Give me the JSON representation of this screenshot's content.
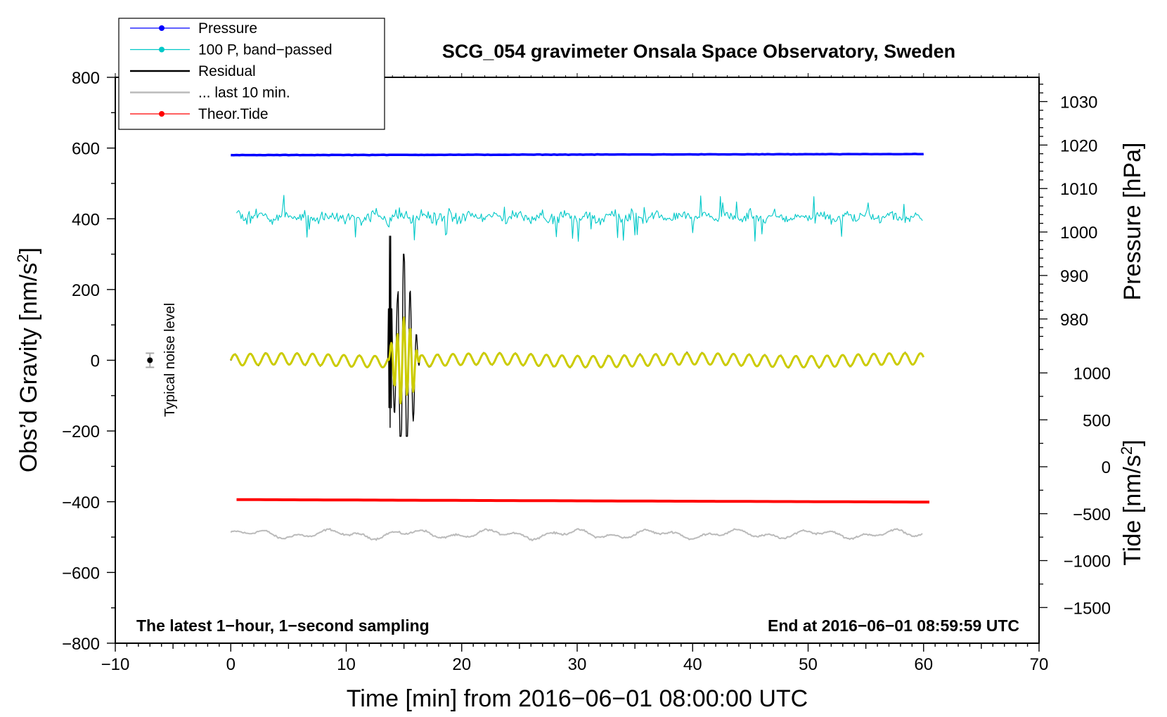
{
  "chart_data": {
    "type": "line",
    "title": "SCG_054 gravimeter Onsala Space Observatory, Sweden",
    "xlabel": "Time [min] from 2016−06−01 08:00:00 UTC",
    "ylabel_left": {
      "main": "Obs’d Gravity [nm/s",
      "sup": "2",
      "close": "]"
    },
    "ylabel_right_top": "Pressure [hPa]",
    "ylabel_right_bottom": {
      "main": "Tide [nm/s",
      "sup": "2",
      "close": "]"
    },
    "xlim": [
      -10,
      70
    ],
    "ylim": [
      -800,
      800
    ],
    "pressure_axis_ticks": [
      1030,
      1020,
      1010,
      1000,
      990,
      980
    ],
    "tide_axis_ticks": [
      1000,
      500,
      0,
      -500,
      -1000,
      -1500
    ],
    "x_tick_labels": [
      "−10",
      "0",
      "10",
      "20",
      "30",
      "40",
      "50",
      "60",
      "70"
    ],
    "y_tick_labels": [
      "800",
      "600",
      "400",
      "200",
      "0",
      "−200",
      "−400",
      "−600",
      "−800"
    ],
    "pressure_tick_labels": [
      "1030",
      "1020",
      "1010",
      "1000",
      "990",
      "980"
    ],
    "tide_tick_labels": [
      "1000",
      "500",
      "0",
      "−500",
      "−1000",
      "−1500"
    ],
    "grid": false,
    "legend": {
      "placement": "top-left",
      "entries": [
        {
          "label": "Pressure",
          "color": "#0000ff",
          "marker": true
        },
        {
          "label": "100 P, band−passed",
          "color": "#00c8c8",
          "marker": true
        },
        {
          "label": "Residual",
          "color": "#000000",
          "marker": false
        },
        {
          "label": "... last 10 min.",
          "color": "#bbbbbb",
          "marker": false
        },
        {
          "label": "Theor.Tide",
          "color": "#ff0000",
          "marker": true
        }
      ]
    },
    "annotations": {
      "bottom_left": "The latest 1−hour, 1−second sampling",
      "bottom_right": "End at 2016−06−01 08:59:59 UTC",
      "noise_label": "Typical noise level",
      "noise_bar": {
        "x": -7,
        "y": 0,
        "half_range": 20
      }
    },
    "series": [
      {
        "name": "Pressure",
        "color": "#0000ff",
        "x_range": [
          0,
          60
        ],
        "level": 581,
        "start": 580,
        "end": 583
      },
      {
        "name": "100 P, band−passed",
        "color": "#00c8c8",
        "x_range": [
          0.5,
          60
        ],
        "level": 405,
        "amplitude": 25
      },
      {
        "name": "Residual",
        "color": "#000000",
        "x_range": [
          0,
          60
        ],
        "level": 0,
        "period_min": 1.35,
        "amplitude": 17,
        "quake_window": [
          13.5,
          16.5
        ],
        "quake_extremes": [
          375,
          -190,
          360,
          -215,
          140
        ]
      },
      {
        "name": "Residual (smoothed)",
        "color": "#cccc00",
        "x_range": [
          0,
          60
        ],
        "level": 0,
        "period_min": 1.35,
        "amplitude": 16,
        "quake_extremes": [
          120,
          -120,
          110,
          -120
        ]
      },
      {
        "name": "... last 10 min.",
        "color": "#bbbbbb",
        "x_range": [
          0,
          60
        ],
        "level": -492,
        "amplitude": 12
      },
      {
        "name": "Theor.Tide",
        "color": "#ff0000",
        "x_range": [
          0.5,
          60.5
        ],
        "start": -394,
        "end": -401
      }
    ]
  }
}
